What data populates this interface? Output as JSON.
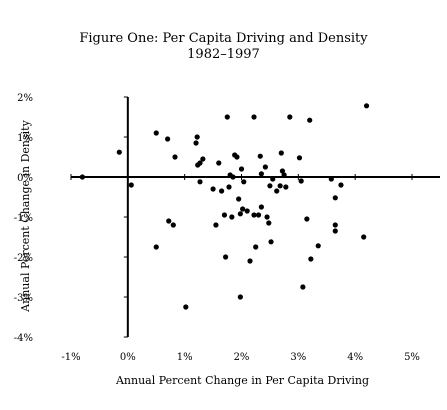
{
  "chart_data": {
    "type": "scatter",
    "title": "Figure One: Per Capita Driving and Density",
    "subtitle": "1982–1997",
    "xlabel": "Annual Percent Change in Per Capita Driving",
    "ylabel": "Annual Percent Change in Density",
    "xlim": [
      -1,
      5
    ],
    "ylim": [
      -4,
      2
    ],
    "xticks": [
      -1,
      0,
      1,
      2,
      3,
      4,
      5
    ],
    "yticks": [
      -4,
      -3,
      -2,
      -1,
      0,
      1,
      2
    ],
    "xtick_labels": [
      "-1%",
      "0%",
      "1%",
      "2%",
      "3%",
      "4%",
      "5%"
    ],
    "ytick_labels": [
      "-4%",
      "-3%",
      "-2%",
      "-1%",
      "0%",
      "1%",
      "2%"
    ],
    "grid": false,
    "points": [
      {
        "x": -0.15,
        "y": 0.62
      },
      {
        "x": -0.8,
        "y": 0.0
      },
      {
        "x": 0.06,
        "y": -0.2
      },
      {
        "x": 0.5,
        "y": 1.1
      },
      {
        "x": 0.5,
        "y": -1.75
      },
      {
        "x": 0.7,
        "y": 0.95
      },
      {
        "x": 0.72,
        "y": -1.1
      },
      {
        "x": 0.8,
        "y": -1.2
      },
      {
        "x": 0.83,
        "y": 0.5
      },
      {
        "x": 1.02,
        "y": -3.25
      },
      {
        "x": 1.2,
        "y": 0.85
      },
      {
        "x": 1.22,
        "y": 1.0
      },
      {
        "x": 1.23,
        "y": 0.3
      },
      {
        "x": 1.27,
        "y": 0.35
      },
      {
        "x": 1.32,
        "y": 0.45
      },
      {
        "x": 1.27,
        "y": -0.12
      },
      {
        "x": 1.5,
        "y": -0.3
      },
      {
        "x": 1.55,
        "y": -1.2
      },
      {
        "x": 1.6,
        "y": 0.35
      },
      {
        "x": 1.65,
        "y": -0.35
      },
      {
        "x": 1.7,
        "y": -0.95
      },
      {
        "x": 1.72,
        "y": -2.0
      },
      {
        "x": 1.75,
        "y": 1.5
      },
      {
        "x": 1.78,
        "y": -0.25
      },
      {
        "x": 1.8,
        "y": 0.05
      },
      {
        "x": 1.83,
        "y": -1.0
      },
      {
        "x": 1.85,
        "y": 0.0
      },
      {
        "x": 1.88,
        "y": 0.55
      },
      {
        "x": 1.92,
        "y": 0.5
      },
      {
        "x": 1.95,
        "y": -0.55
      },
      {
        "x": 1.98,
        "y": -3.0
      },
      {
        "x": 1.98,
        "y": -0.92
      },
      {
        "x": 2.0,
        "y": 0.2
      },
      {
        "x": 2.02,
        "y": -0.8
      },
      {
        "x": 2.04,
        "y": -0.12
      },
      {
        "x": 2.1,
        "y": -0.85
      },
      {
        "x": 2.15,
        "y": -2.1
      },
      {
        "x": 2.22,
        "y": 1.5
      },
      {
        "x": 2.22,
        "y": -0.95
      },
      {
        "x": 2.25,
        "y": -1.75
      },
      {
        "x": 2.3,
        "y": -0.95
      },
      {
        "x": 2.33,
        "y": 0.52
      },
      {
        "x": 2.35,
        "y": 0.08
      },
      {
        "x": 2.35,
        "y": -0.75
      },
      {
        "x": 2.42,
        "y": 0.25
      },
      {
        "x": 2.45,
        "y": -1.0
      },
      {
        "x": 2.48,
        "y": -1.15
      },
      {
        "x": 2.5,
        "y": -0.22
      },
      {
        "x": 2.52,
        "y": -1.62
      },
      {
        "x": 2.55,
        "y": -0.05
      },
      {
        "x": 2.62,
        "y": -0.35
      },
      {
        "x": 2.68,
        "y": -0.22
      },
      {
        "x": 2.7,
        "y": 0.6
      },
      {
        "x": 2.72,
        "y": 0.15
      },
      {
        "x": 2.75,
        "y": 0.05
      },
      {
        "x": 2.78,
        "y": -0.25
      },
      {
        "x": 2.85,
        "y": 1.5
      },
      {
        "x": 3.02,
        "y": 0.48
      },
      {
        "x": 3.05,
        "y": -0.1
      },
      {
        "x": 3.08,
        "y": -2.75
      },
      {
        "x": 3.15,
        "y": -1.05
      },
      {
        "x": 3.2,
        "y": 1.42
      },
      {
        "x": 3.22,
        "y": -2.05
      },
      {
        "x": 3.35,
        "y": -1.72
      },
      {
        "x": 3.58,
        "y": -0.05
      },
      {
        "x": 3.65,
        "y": -0.52
      },
      {
        "x": 3.65,
        "y": -1.2
      },
      {
        "x": 3.65,
        "y": -1.35
      },
      {
        "x": 3.75,
        "y": -0.2
      },
      {
        "x": 4.15,
        "y": -1.5
      },
      {
        "x": 4.2,
        "y": 1.78
      }
    ]
  }
}
